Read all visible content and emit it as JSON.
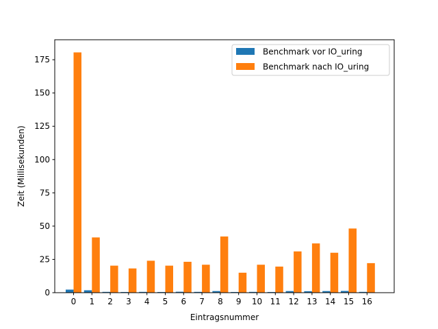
{
  "chart_data": {
    "type": "bar",
    "title": "",
    "xlabel": "Eintragsnummer",
    "ylabel": "Zeit (Millisekunden)",
    "categories": [
      "0",
      "1",
      "2",
      "3",
      "4",
      "5",
      "6",
      "7",
      "8",
      "9",
      "10",
      "11",
      "12",
      "13",
      "14",
      "15",
      "16"
    ],
    "ylim": [
      0,
      190
    ],
    "yticks": [
      0,
      25,
      50,
      75,
      100,
      125,
      150,
      175
    ],
    "legend_position": "upper right",
    "grid": false,
    "series": [
      {
        "name": "Benchmark vor IO_uring",
        "color": "#1f77b4",
        "values": [
          2.3,
          1.8,
          0.6,
          0.5,
          0.6,
          0.5,
          0.7,
          0.6,
          1.2,
          0.5,
          0.6,
          0.5,
          1.2,
          1.1,
          1.2,
          1.3,
          0.6
        ]
      },
      {
        "name": "Benchmark nach IO_uring",
        "color": "#ff7f0e",
        "values": [
          180.5,
          41.5,
          20.3,
          18.2,
          24.0,
          20.3,
          23.2,
          21.0,
          42.2,
          15.0,
          21.0,
          19.6,
          31.0,
          37.0,
          30.0,
          48.2,
          22.2
        ]
      }
    ]
  }
}
